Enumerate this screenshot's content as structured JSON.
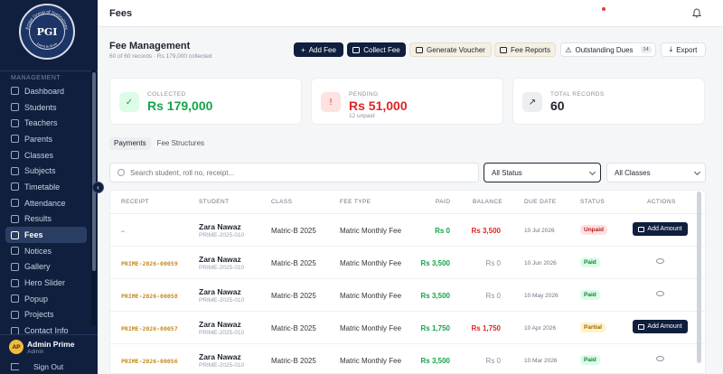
{
  "sidebar": {
    "logo": {
      "top_text": "Prime Group of Institutions",
      "mark": "PGI",
      "bottom_text": "Learn & Grow"
    },
    "section_label": "MANAGEMENT",
    "items": [
      {
        "label": "Dashboard",
        "icon": "dashboard-icon"
      },
      {
        "label": "Students",
        "icon": "students-icon"
      },
      {
        "label": "Teachers",
        "icon": "teachers-icon"
      },
      {
        "label": "Parents",
        "icon": "parents-icon"
      },
      {
        "label": "Classes",
        "icon": "classes-icon"
      },
      {
        "label": "Subjects",
        "icon": "subjects-icon"
      },
      {
        "label": "Timetable",
        "icon": "timetable-icon"
      },
      {
        "label": "Attendance",
        "icon": "attendance-icon"
      },
      {
        "label": "Results",
        "icon": "results-icon"
      },
      {
        "label": "Fees",
        "icon": "fees-icon",
        "active": true
      },
      {
        "label": "Notices",
        "icon": "notices-icon"
      },
      {
        "label": "Gallery",
        "icon": "gallery-icon"
      },
      {
        "label": "Hero Slider",
        "icon": "slider-icon"
      },
      {
        "label": "Popup",
        "icon": "popup-icon"
      },
      {
        "label": "Projects",
        "icon": "projects-icon"
      },
      {
        "label": "Contact Info",
        "icon": "contact-icon"
      }
    ],
    "user": {
      "initials": "AP",
      "name": "Admin Prime",
      "role": "Admin"
    },
    "sign_out": "Sign Out"
  },
  "topbar": {
    "title": "Fees"
  },
  "header": {
    "title": "Fee Management",
    "subtitle": "60 of 60 records · Rs 179,000 collected",
    "buttons": {
      "add_fee": "Add Fee",
      "collect_fee": "Collect Fee",
      "generate_voucher": "Generate Voucher",
      "fee_reports": "Fee Reports",
      "outstanding_dues": "Outstanding Dues",
      "outstanding_count": "14",
      "export": "Export"
    }
  },
  "stats": {
    "collected": {
      "label": "COLLECTED",
      "value": "Rs 179,000",
      "color": "#16a34a"
    },
    "pending": {
      "label": "PENDING",
      "value": "Rs 51,000",
      "sub": "12 unpaid",
      "color": "#dc2626"
    },
    "total": {
      "label": "TOTAL RECORDS",
      "value": "60"
    }
  },
  "tabs": {
    "payments": "Payments",
    "fee_structures": "Fee Structures"
  },
  "filters": {
    "search_placeholder": "Search student, roll no, receipt...",
    "status": "All Status",
    "classes": "All Classes"
  },
  "table": {
    "headers": {
      "receipt": "RECEIPT",
      "student": "STUDENT",
      "class": "CLASS",
      "fee_type": "FEE TYPE",
      "paid": "PAID",
      "balance": "BALANCE",
      "due_date": "DUE DATE",
      "status": "STATUS",
      "actions": "ACTIONS"
    },
    "action_label": "Add Amount",
    "rows": [
      {
        "receipt": "—",
        "name": "Zara Nawaz",
        "id": "PRIME-2025-010",
        "class": "Matric-B 2025",
        "fee_type": "Matric Monthly Fee",
        "paid": "Rs 0",
        "balance": "Rs 3,500",
        "due": "10 Jul 2026",
        "status": "Unpaid"
      },
      {
        "receipt": "PRIME-2026-00059",
        "name": "Zara Nawaz",
        "id": "PRIME-2025-010",
        "class": "Matric-B 2025",
        "fee_type": "Matric Monthly Fee",
        "paid": "Rs 3,500",
        "balance": "Rs 0",
        "due": "10 Jun 2026",
        "status": "Paid"
      },
      {
        "receipt": "PRIME-2026-00058",
        "name": "Zara Nawaz",
        "id": "PRIME-2025-010",
        "class": "Matric-B 2025",
        "fee_type": "Matric Monthly Fee",
        "paid": "Rs 3,500",
        "balance": "Rs 0",
        "due": "10 May 2026",
        "status": "Paid"
      },
      {
        "receipt": "PRIME-2026-00057",
        "name": "Zara Nawaz",
        "id": "PRIME-2025-010",
        "class": "Matric-B 2025",
        "fee_type": "Matric Monthly Fee",
        "paid": "Rs 1,750",
        "balance": "Rs 1,750",
        "due": "10 Apr 2026",
        "status": "Partial"
      },
      {
        "receipt": "PRIME-2026-00056",
        "name": "Zara Nawaz",
        "id": "PRIME-2025-010",
        "class": "Matric-B 2025",
        "fee_type": "Matric Monthly Fee",
        "paid": "Rs 3,500",
        "balance": "Rs 0",
        "due": "10 Mar 2026",
        "status": "Paid"
      }
    ]
  }
}
